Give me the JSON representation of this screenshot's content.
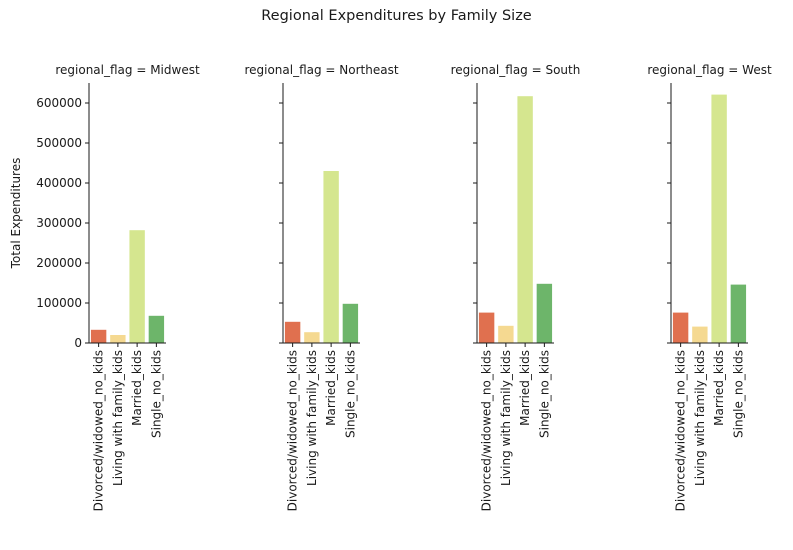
{
  "chart_data": {
    "type": "bar",
    "title": "Regional Expenditures by Family Size",
    "ylabel": "Total Expenditures",
    "xlabel": "",
    "ylim": [
      0,
      650000
    ],
    "yticks": [
      0,
      100000,
      200000,
      300000,
      400000,
      500000,
      600000
    ],
    "ytick_labels": [
      "0",
      "100000",
      "200000",
      "300000",
      "400000",
      "500000",
      "600000"
    ],
    "categories": [
      "Divorced/widowed_no_kids",
      "Living with family_kids",
      "Married_kids",
      "Single_no_kids"
    ],
    "colors": [
      "#e0704f",
      "#f5d991",
      "#d5e68f",
      "#6db56a"
    ],
    "panels": [
      {
        "title": "regional_flag = Midwest",
        "values": [
          33000,
          20000,
          282000,
          68000
        ]
      },
      {
        "title": "regional_flag = Northeast",
        "values": [
          53000,
          27000,
          430000,
          98000
        ]
      },
      {
        "title": "regional_flag = South",
        "values": [
          76000,
          43000,
          617000,
          148000
        ]
      },
      {
        "title": "regional_flag = West",
        "values": [
          76000,
          41000,
          621000,
          146000
        ]
      }
    ],
    "grid": false,
    "legend": "none"
  }
}
